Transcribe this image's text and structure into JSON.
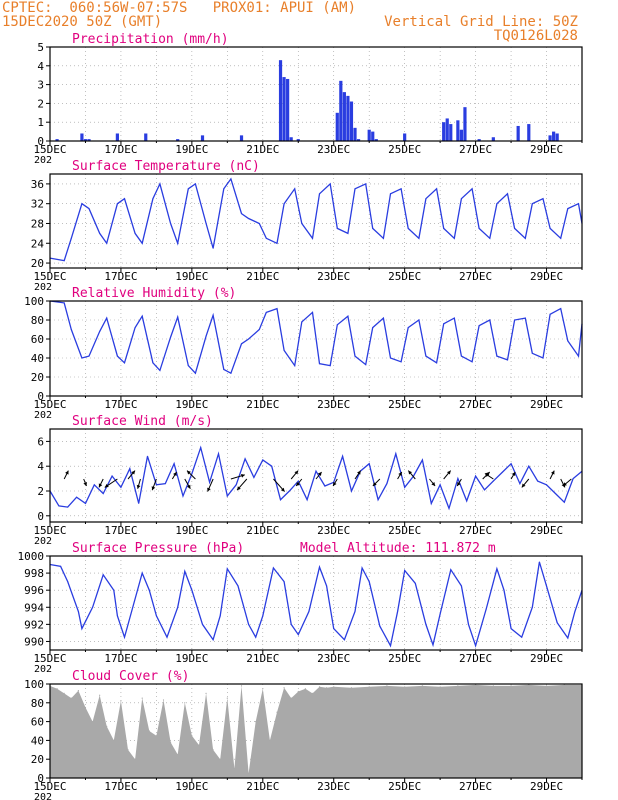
{
  "header": {
    "line1_left": "CPTEC:  060:56W-07:57S   PROX01: APUI (AM)",
    "line2_left": "15DEC2020 50Z (GMT)",
    "line1_right": "Vertical Grid Line: 50Z",
    "line2_right": "TQ0126L028"
  },
  "x_ticks": [
    "15DEC",
    "17DEC",
    "19DEC",
    "21DEC",
    "23DEC",
    "25DEC",
    "27DEC",
    "29DEC"
  ],
  "year_fragment": "202",
  "colors": {
    "title": "#e0007f",
    "header": "#e87f2a",
    "line": "#2a3de0",
    "bar": "#2a3de0",
    "cloud": "#a9a9a9",
    "grid": "#999999"
  },
  "chart_data": [
    {
      "id": "precip",
      "type": "bar",
      "title": "Precipitation (mm/h)",
      "ylim": [
        0,
        5
      ],
      "yticks": [
        0,
        1,
        2,
        3,
        4,
        5
      ],
      "xlim": [
        0,
        15
      ],
      "x": [
        0.2,
        0.9,
        1.0,
        1.1,
        1.9,
        2.7,
        3.6,
        4.3,
        5.4,
        6.5,
        6.6,
        6.7,
        6.8,
        7.0,
        8.1,
        8.2,
        8.3,
        8.4,
        8.5,
        8.6,
        8.7,
        9.0,
        9.1,
        9.2,
        10.0,
        11.1,
        11.2,
        11.3,
        11.5,
        11.6,
        11.7,
        12.1,
        12.5,
        13.2,
        13.5,
        14.1,
        14.2,
        14.3
      ],
      "values": [
        0.1,
        0.4,
        0.1,
        0.1,
        0.4,
        0.4,
        0.1,
        0.3,
        0.3,
        4.3,
        3.4,
        3.3,
        0.2,
        0.1,
        1.5,
        3.2,
        2.6,
        2.4,
        2.1,
        0.7,
        0.1,
        0.6,
        0.5,
        0.1,
        0.4,
        1.0,
        1.2,
        0.9,
        1.1,
        0.6,
        1.8,
        0.1,
        0.2,
        0.8,
        0.9,
        0.3,
        0.5,
        0.4
      ]
    },
    {
      "id": "temp",
      "type": "line",
      "title": "Surface Temperature (nC)",
      "ylim": [
        19,
        38
      ],
      "yticks": [
        20,
        24,
        28,
        32,
        36
      ],
      "xlim": [
        0,
        15
      ],
      "x": [
        0,
        0.4,
        0.6,
        0.9,
        1.1,
        1.4,
        1.6,
        1.9,
        2.1,
        2.4,
        2.6,
        2.9,
        3.1,
        3.4,
        3.6,
        3.9,
        4.1,
        4.4,
        4.6,
        4.9,
        5.1,
        5.4,
        5.6,
        5.9,
        6.1,
        6.4,
        6.6,
        6.9,
        7.1,
        7.4,
        7.6,
        7.9,
        8.1,
        8.4,
        8.6,
        8.9,
        9.1,
        9.4,
        9.6,
        9.9,
        10.1,
        10.4,
        10.6,
        10.9,
        11.1,
        11.4,
        11.6,
        11.9,
        12.1,
        12.4,
        12.6,
        12.9,
        13.1,
        13.4,
        13.6,
        13.9,
        14.1,
        14.4,
        14.6,
        14.9,
        15
      ],
      "values": [
        21,
        20.5,
        25,
        32,
        31,
        26,
        24,
        32,
        33,
        26,
        24,
        33,
        36,
        28,
        24,
        35,
        36,
        28,
        23,
        35,
        37,
        30,
        29,
        28,
        25,
        24,
        32,
        35,
        28,
        25,
        34,
        36,
        27,
        26,
        35,
        36,
        27,
        25,
        34,
        35,
        27,
        25,
        33,
        35,
        27,
        25,
        33,
        35,
        27,
        25,
        32,
        34,
        27,
        25,
        32,
        33,
        27,
        25,
        31,
        32,
        28
      ]
    },
    {
      "id": "rh",
      "type": "line",
      "title": "Relative Humidity (%)",
      "ylim": [
        0,
        100
      ],
      "yticks": [
        0,
        20,
        40,
        60,
        80,
        100
      ],
      "xlim": [
        0,
        15
      ],
      "x": [
        0,
        0.4,
        0.6,
        0.9,
        1.1,
        1.4,
        1.6,
        1.9,
        2.1,
        2.4,
        2.6,
        2.9,
        3.1,
        3.4,
        3.6,
        3.9,
        4.1,
        4.4,
        4.6,
        4.9,
        5.1,
        5.4,
        5.6,
        5.9,
        6.1,
        6.4,
        6.6,
        6.9,
        7.1,
        7.4,
        7.6,
        7.9,
        8.1,
        8.4,
        8.6,
        8.9,
        9.1,
        9.4,
        9.6,
        9.9,
        10.1,
        10.4,
        10.6,
        10.9,
        11.1,
        11.4,
        11.6,
        11.9,
        12.1,
        12.4,
        12.6,
        12.9,
        13.1,
        13.4,
        13.6,
        13.9,
        14.1,
        14.4,
        14.6,
        14.9,
        15
      ],
      "values": [
        100,
        98,
        70,
        40,
        42,
        68,
        82,
        42,
        35,
        72,
        84,
        35,
        27,
        62,
        83,
        32,
        24,
        63,
        85,
        28,
        24,
        55,
        60,
        70,
        88,
        92,
        48,
        32,
        78,
        88,
        34,
        32,
        75,
        84,
        42,
        33,
        72,
        82,
        40,
        36,
        72,
        80,
        42,
        35,
        76,
        82,
        42,
        36,
        74,
        80,
        42,
        38,
        80,
        82,
        45,
        40,
        86,
        92,
        58,
        42,
        76
      ]
    },
    {
      "id": "wind",
      "type": "line",
      "title": "Surface Wind (m/s)",
      "ylim": [
        -0.5,
        7
      ],
      "yticks": [
        0,
        2,
        4,
        6
      ],
      "xlim": [
        0,
        15
      ],
      "x": [
        0,
        0.25,
        0.5,
        0.75,
        1.0,
        1.25,
        1.5,
        1.75,
        2.0,
        2.25,
        2.5,
        2.75,
        3.0,
        3.25,
        3.5,
        3.75,
        4.0,
        4.25,
        4.5,
        4.75,
        5.0,
        5.25,
        5.5,
        5.75,
        6.0,
        6.25,
        6.5,
        6.75,
        7.0,
        7.25,
        7.5,
        7.75,
        8.0,
        8.25,
        8.5,
        8.75,
        9.0,
        9.25,
        9.5,
        9.75,
        10.0,
        10.25,
        10.5,
        10.75,
        11.0,
        11.25,
        11.5,
        11.75,
        12.0,
        12.25,
        12.5,
        12.75,
        13.0,
        13.25,
        13.5,
        13.75,
        14.0,
        14.25,
        14.5,
        14.75,
        15.0
      ],
      "values": [
        2,
        0.8,
        0.7,
        1.5,
        1.0,
        2.5,
        1.8,
        3.2,
        2.3,
        3.8,
        1.0,
        4.8,
        2.5,
        2.6,
        4.2,
        1.6,
        3.4,
        5.5,
        2.7,
        5.0,
        1.6,
        2.5,
        4.6,
        3.1,
        4.5,
        4.0,
        1.3,
        2.0,
        2.8,
        1.3,
        3.6,
        2.4,
        2.7,
        4.8,
        2.0,
        3.6,
        4.2,
        1.3,
        2.6,
        5.0,
        2.3,
        3.2,
        4.5,
        1.0,
        2.5,
        0.6,
        3.0,
        1.2,
        3.2,
        2.1,
        2.8,
        3.5,
        4.2,
        2.6,
        4.0,
        2.8,
        2.5,
        1.8,
        1.1,
        3.0,
        3.6
      ],
      "arrows": [
        {
          "x": 0.4,
          "u": 0.3,
          "v": 0.6
        },
        {
          "x": 0.95,
          "u": 0.2,
          "v": -0.5
        },
        {
          "x": 1.5,
          "u": -0.3,
          "v": -0.6
        },
        {
          "x": 1.9,
          "u": -0.9,
          "v": -0.6
        },
        {
          "x": 2.2,
          "u": 0.5,
          "v": 0.6
        },
        {
          "x": 2.55,
          "u": -0.2,
          "v": -0.7
        },
        {
          "x": 3.0,
          "u": -0.3,
          "v": -0.8
        },
        {
          "x": 3.45,
          "u": 0.3,
          "v": 0.5
        },
        {
          "x": 3.8,
          "u": 0.4,
          "v": -0.7
        },
        {
          "x": 4.1,
          "u": -0.6,
          "v": 0.6
        },
        {
          "x": 4.6,
          "u": -0.4,
          "v": -0.9
        },
        {
          "x": 5.1,
          "u": 1.0,
          "v": 0.3
        },
        {
          "x": 5.55,
          "u": -0.7,
          "v": -0.8
        },
        {
          "x": 6.3,
          "u": 0.8,
          "v": -0.9
        },
        {
          "x": 6.8,
          "u": 0.5,
          "v": 0.6
        },
        {
          "x": 7.1,
          "u": -0.4,
          "v": -0.5
        },
        {
          "x": 7.5,
          "u": 0.4,
          "v": 0.5
        },
        {
          "x": 8.1,
          "u": -0.3,
          "v": -0.5
        },
        {
          "x": 8.6,
          "u": 0.4,
          "v": 0.6
        },
        {
          "x": 9.3,
          "u": -0.5,
          "v": -0.5
        },
        {
          "x": 9.8,
          "u": 0.3,
          "v": 0.5
        },
        {
          "x": 10.3,
          "u": -0.5,
          "v": 0.6
        },
        {
          "x": 10.7,
          "u": 0.4,
          "v": -0.5
        },
        {
          "x": 11.1,
          "u": 0.5,
          "v": 0.6
        },
        {
          "x": 11.6,
          "u": -0.3,
          "v": -0.5
        },
        {
          "x": 12.2,
          "u": 0.5,
          "v": 0.5
        },
        {
          "x": 12.5,
          "u": -0.6,
          "v": 0.4
        },
        {
          "x": 13.0,
          "u": 0.3,
          "v": 0.5
        },
        {
          "x": 13.5,
          "u": -0.5,
          "v": -0.6
        },
        {
          "x": 14.1,
          "u": 0.3,
          "v": 0.6
        },
        {
          "x": 14.4,
          "u": 0.3,
          "v": -0.6
        },
        {
          "x": 14.7,
          "u": -0.6,
          "v": -0.5
        }
      ]
    },
    {
      "id": "pres",
      "type": "line",
      "title": "Surface Pressure (hPa)",
      "extra_label": "Model Altitude: 111.872 m",
      "ylim": [
        989,
        1000
      ],
      "yticks": [
        990,
        992,
        994,
        996,
        998,
        1000
      ],
      "xlim": [
        0,
        15
      ],
      "x": [
        0,
        0.3,
        0.5,
        0.8,
        0.9,
        1.2,
        1.5,
        1.8,
        1.9,
        2.1,
        2.3,
        2.6,
        2.8,
        3.0,
        3.3,
        3.6,
        3.8,
        4.0,
        4.3,
        4.6,
        4.8,
        5.0,
        5.3,
        5.6,
        5.8,
        6.0,
        6.3,
        6.6,
        6.8,
        7.0,
        7.3,
        7.6,
        7.8,
        8.0,
        8.3,
        8.6,
        8.8,
        9.0,
        9.3,
        9.6,
        9.8,
        10.0,
        10.3,
        10.6,
        10.8,
        11.0,
        11.3,
        11.6,
        11.8,
        12.0,
        12.3,
        12.6,
        12.8,
        13.0,
        13.3,
        13.6,
        13.8,
        14.0,
        14.3,
        14.6,
        14.8,
        15.0
      ],
      "values": [
        999,
        998.8,
        997,
        993.5,
        991.5,
        994,
        997.8,
        996,
        993,
        990.5,
        993.5,
        998,
        996,
        993,
        990.5,
        994,
        998.2,
        996,
        992,
        990.2,
        993,
        998.5,
        996.5,
        992,
        990.5,
        993,
        998.6,
        997,
        992,
        990.8,
        993.5,
        998.7,
        996.5,
        991.5,
        990.2,
        993.5,
        998.6,
        997,
        991.8,
        989.5,
        993.5,
        998.3,
        996.8,
        992,
        989.6,
        993.2,
        998.4,
        996.5,
        992,
        989.5,
        993.8,
        998.5,
        996,
        991.5,
        990.5,
        994,
        999.3,
        996.5,
        992.2,
        990.4,
        993.5,
        996
      ]
    },
    {
      "id": "cloud",
      "type": "area",
      "title": "Cloud Cover (%)",
      "ylim": [
        0,
        100
      ],
      "yticks": [
        0,
        20,
        40,
        60,
        80,
        100
      ],
      "xlim": [
        0,
        15
      ],
      "x": [
        0,
        0.2,
        0.4,
        0.6,
        0.8,
        1.0,
        1.2,
        1.4,
        1.6,
        1.8,
        2.0,
        2.2,
        2.4,
        2.6,
        2.8,
        3.0,
        3.2,
        3.4,
        3.6,
        3.8,
        4.0,
        4.2,
        4.4,
        4.6,
        4.8,
        5.0,
        5.2,
        5.4,
        5.6,
        5.8,
        6.0,
        6.2,
        6.4,
        6.6,
        6.8,
        7.0,
        7.2,
        7.4,
        7.6,
        7.8,
        8.0,
        8.5,
        9.0,
        9.5,
        10.0,
        10.5,
        11.0,
        11.5,
        12.0,
        12.5,
        13.0,
        13.5,
        14.0,
        14.5,
        15.0
      ],
      "values": [
        98,
        95,
        90,
        85,
        93,
        75,
        60,
        88,
        55,
        40,
        82,
        30,
        20,
        85,
        50,
        45,
        83,
        38,
        25,
        80,
        45,
        35,
        90,
        30,
        20,
        85,
        10,
        98,
        5,
        60,
        95,
        40,
        70,
        96,
        85,
        92,
        95,
        90,
        97,
        96,
        97,
        96,
        97,
        98,
        97,
        98,
        97,
        98,
        99,
        98,
        98,
        99,
        98,
        99,
        99
      ]
    }
  ]
}
